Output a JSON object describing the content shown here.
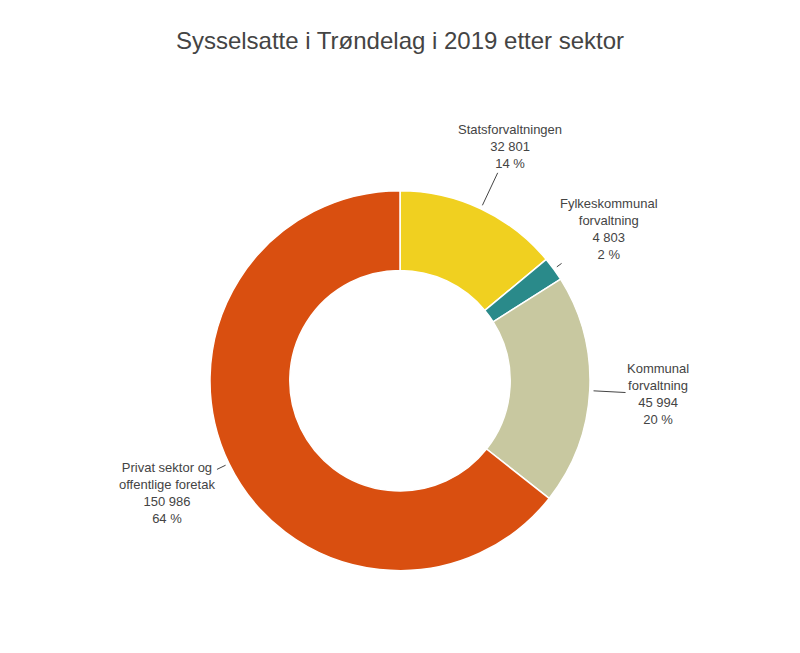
{
  "chart_data": {
    "type": "pie",
    "title": "Sysselsatte i Trøndelag i 2019 etter sektor",
    "categories": [
      "Statsforvaltningen",
      "Fylkeskommunal\nforvaltning",
      "Kommunal\nforvaltning",
      "Privat sektor og\noffentlige foretak"
    ],
    "values": [
      32801,
      4803,
      45994,
      150986
    ],
    "value_labels": [
      "32 801",
      "4 803",
      "45 994",
      "150 986"
    ],
    "shares": [
      14,
      2,
      20,
      64
    ],
    "share_labels": [
      "14 %",
      "2 %",
      "20 %",
      "64 %"
    ],
    "colors": [
      "#f0d020",
      "#2a8a8a",
      "#c8c8a0",
      "#d94f10"
    ]
  }
}
